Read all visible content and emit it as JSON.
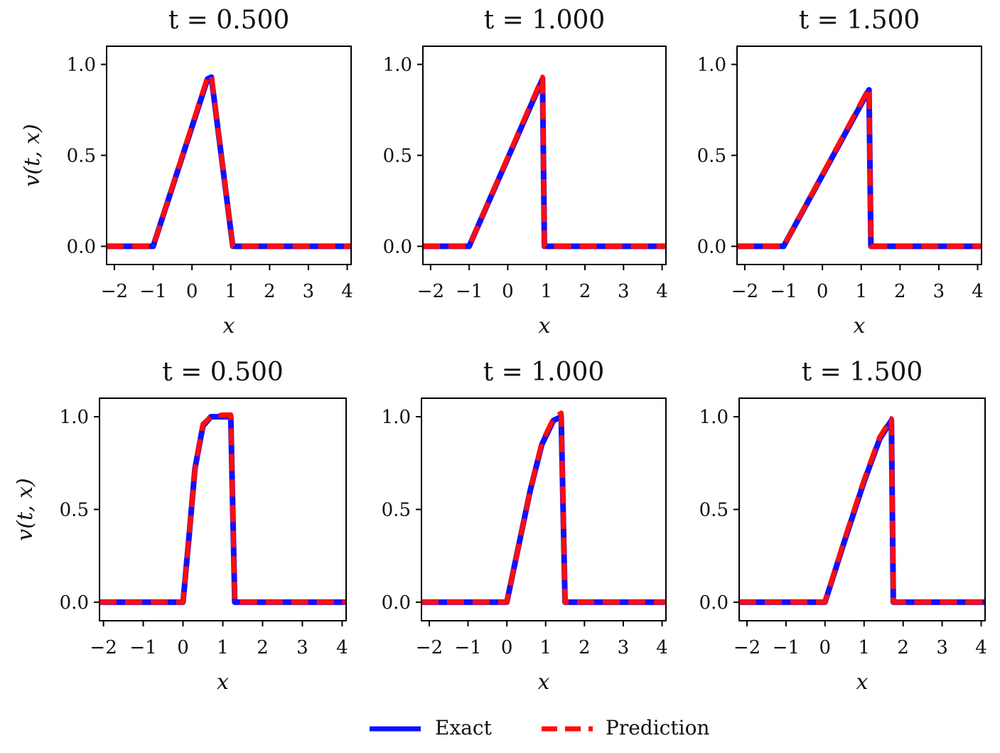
{
  "chart_data": [
    {
      "type": "line",
      "title": "t = 0.500",
      "xlabel": "x",
      "ylabel": "v(t, x)",
      "xlim": [
        -2.2,
        4.1
      ],
      "ylim": [
        -0.1,
        1.1
      ],
      "xticks": [
        "−2",
        "−1",
        "0",
        "1",
        "2",
        "3",
        "4"
      ],
      "yticks": [
        "0.0",
        "0.5",
        "1.0"
      ],
      "series": [
        {
          "name": "Exact",
          "x": [
            -2.2,
            -1.0,
            0.4,
            0.5,
            1.05,
            4.1
          ],
          "y": [
            0,
            0,
            0.92,
            0.93,
            0,
            0
          ]
        },
        {
          "name": "Prediction",
          "x": [
            -2.2,
            -1.0,
            0.4,
            0.5,
            1.05,
            4.1
          ],
          "y": [
            0,
            0,
            0.93,
            0.94,
            0,
            0
          ]
        }
      ]
    },
    {
      "type": "line",
      "title": "t = 1.000",
      "xlabel": "x",
      "ylabel": "",
      "xlim": [
        -2.2,
        4.1
      ],
      "ylim": [
        -0.1,
        1.1
      ],
      "xticks": [
        "−2",
        "−1",
        "0",
        "1",
        "2",
        "3",
        "4"
      ],
      "yticks": [
        "0.0",
        "0.5",
        "1.0"
      ],
      "series": [
        {
          "name": "Exact",
          "x": [
            -2.2,
            -1.0,
            0.9,
            0.95,
            4.1
          ],
          "y": [
            0,
            0,
            0.92,
            0,
            0
          ]
        },
        {
          "name": "Prediction",
          "x": [
            -2.2,
            -1.0,
            0.9,
            0.95,
            4.1
          ],
          "y": [
            0,
            0,
            0.93,
            0,
            0
          ]
        }
      ]
    },
    {
      "type": "line",
      "title": "t = 1.500",
      "xlabel": "x",
      "ylabel": "",
      "xlim": [
        -2.2,
        4.1
      ],
      "ylim": [
        -0.1,
        1.1
      ],
      "xticks": [
        "−2",
        "−1",
        "0",
        "1",
        "2",
        "3",
        "4"
      ],
      "yticks": [
        "0.0",
        "0.5",
        "1.0"
      ],
      "series": [
        {
          "name": "Exact",
          "x": [
            -2.2,
            -1.0,
            1.2,
            1.25,
            4.1
          ],
          "y": [
            0,
            0,
            0.86,
            0,
            0
          ]
        },
        {
          "name": "Prediction",
          "x": [
            -2.2,
            -1.0,
            1.2,
            1.25,
            4.1
          ],
          "y": [
            0,
            0,
            0.87,
            0,
            0
          ]
        }
      ]
    },
    {
      "type": "line",
      "title": "t = 0.500",
      "xlabel": "x",
      "ylabel": "v(t, x)",
      "xlim": [
        -2.1,
        4.1
      ],
      "ylim": [
        -0.1,
        1.1
      ],
      "xticks": [
        "−2",
        "−1",
        "0",
        "1",
        "2",
        "3",
        "4"
      ],
      "yticks": [
        "0.0",
        "0.5",
        "1.0"
      ],
      "series": [
        {
          "name": "Exact",
          "x": [
            -2.1,
            0.0,
            0.15,
            0.3,
            0.5,
            0.7,
            1.0,
            1.2,
            1.3,
            4.1
          ],
          "y": [
            0,
            0,
            0.35,
            0.72,
            0.95,
            1.0,
            1.0,
            1.0,
            0,
            0
          ]
        },
        {
          "name": "Prediction",
          "x": [
            -2.1,
            0.0,
            0.15,
            0.3,
            0.5,
            0.7,
            1.0,
            1.2,
            1.3,
            4.1
          ],
          "y": [
            0,
            0,
            0.35,
            0.72,
            0.96,
            1.0,
            1.01,
            1.01,
            0,
            0
          ]
        }
      ]
    },
    {
      "type": "line",
      "title": "t = 1.000",
      "xlabel": "x",
      "ylabel": "",
      "xlim": [
        -2.2,
        4.1
      ],
      "ylim": [
        -0.1,
        1.1
      ],
      "xticks": [
        "−2",
        "−1",
        "0",
        "1",
        "2",
        "3",
        "4"
      ],
      "yticks": [
        "0.0",
        "0.5",
        "1.0"
      ],
      "series": [
        {
          "name": "Exact",
          "x": [
            -2.2,
            0.0,
            0.3,
            0.6,
            0.9,
            1.2,
            1.4,
            1.5,
            4.1
          ],
          "y": [
            0,
            0,
            0.3,
            0.6,
            0.85,
            0.98,
            1.0,
            0,
            0
          ]
        },
        {
          "name": "Prediction",
          "x": [
            -2.2,
            0.0,
            0.3,
            0.6,
            0.9,
            1.2,
            1.4,
            1.5,
            4.1
          ],
          "y": [
            0,
            0,
            0.3,
            0.6,
            0.86,
            0.99,
            1.02,
            0,
            0
          ]
        }
      ]
    },
    {
      "type": "line",
      "title": "t = 1.500",
      "xlabel": "x",
      "ylabel": "",
      "xlim": [
        -2.2,
        4.1
      ],
      "ylim": [
        -0.1,
        1.1
      ],
      "xticks": [
        "−2",
        "−1",
        "0",
        "1",
        "2",
        "3",
        "4"
      ],
      "yticks": [
        "0.0",
        "0.5",
        "1.0"
      ],
      "series": [
        {
          "name": "Exact",
          "x": [
            -2.2,
            0.0,
            0.5,
            1.0,
            1.4,
            1.7,
            1.75,
            4.1
          ],
          "y": [
            0,
            0,
            0.33,
            0.65,
            0.88,
            0.98,
            0,
            0
          ]
        },
        {
          "name": "Prediction",
          "x": [
            -2.2,
            0.0,
            0.5,
            1.0,
            1.4,
            1.7,
            1.75,
            4.1
          ],
          "y": [
            0,
            0,
            0.34,
            0.66,
            0.89,
            0.99,
            0,
            0
          ]
        }
      ]
    }
  ],
  "legend": {
    "exact_label": "Exact",
    "prediction_label": "Prediction",
    "exact_color": "#1010ff",
    "prediction_color": "#ff0d0d"
  }
}
